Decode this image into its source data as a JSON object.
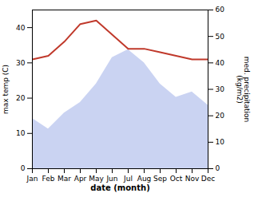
{
  "chart_data": {
    "type": "line",
    "xlabel": "date (month)",
    "ylabel": "max temp (C)",
    "y2label": "med. precipitation\n(kg/m2)",
    "categories": [
      "Jan",
      "Feb",
      "Mar",
      "Apr",
      "May",
      "Jun",
      "Jul",
      "Aug",
      "Sep",
      "Oct",
      "Nov",
      "Dec"
    ],
    "series": [
      {
        "type": "area",
        "axis": "y2",
        "color": "#b8c4ee",
        "values": [
          19,
          15,
          21,
          25,
          32,
          42,
          45,
          40,
          32,
          27,
          29,
          24
        ]
      },
      {
        "type": "line",
        "color": "#c0392b",
        "values": [
          31,
          32,
          36,
          41,
          42,
          38,
          34,
          34,
          33,
          32,
          31,
          31
        ]
      }
    ],
    "ylim": [
      0,
      45
    ],
    "yticks": [
      0,
      10,
      20,
      30,
      40
    ],
    "y2lim": [
      0,
      60
    ],
    "y2ticks": [
      0,
      10,
      20,
      30,
      40,
      50,
      60
    ],
    "grid": false
  }
}
